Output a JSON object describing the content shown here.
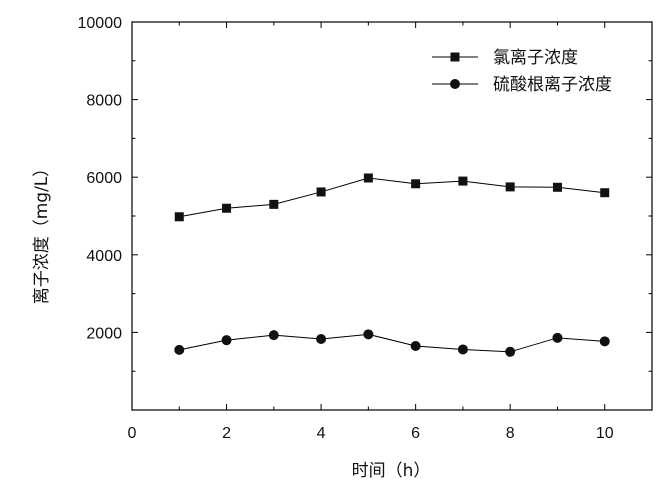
{
  "chart_data": {
    "type": "line",
    "xlabel": "时间（h）",
    "ylabel": "离子浓度（mg/L）",
    "xlim": [
      0,
      11
    ],
    "ylim": [
      0,
      10000
    ],
    "x_ticks": [
      "0",
      "2",
      "4",
      "6",
      "8",
      "10"
    ],
    "y_ticks": [
      "2000",
      "4000",
      "6000",
      "8000",
      "10000"
    ],
    "grid": false,
    "legend_position": "top-right",
    "x": [
      1,
      2,
      3,
      4,
      5,
      6,
      7,
      8,
      9,
      10
    ],
    "series": [
      {
        "name": "氯离子浓度",
        "marker": "square",
        "values": [
          4980,
          5200,
          5300,
          5620,
          5980,
          5830,
          5900,
          5750,
          5740,
          5600
        ]
      },
      {
        "name": "硫酸根离子浓度",
        "marker": "circle",
        "values": [
          1550,
          1800,
          1930,
          1830,
          1950,
          1650,
          1560,
          1500,
          1860,
          1770
        ]
      }
    ],
    "colors": {
      "line": "#000000",
      "marker": "#111111",
      "axis": "#000000"
    }
  }
}
